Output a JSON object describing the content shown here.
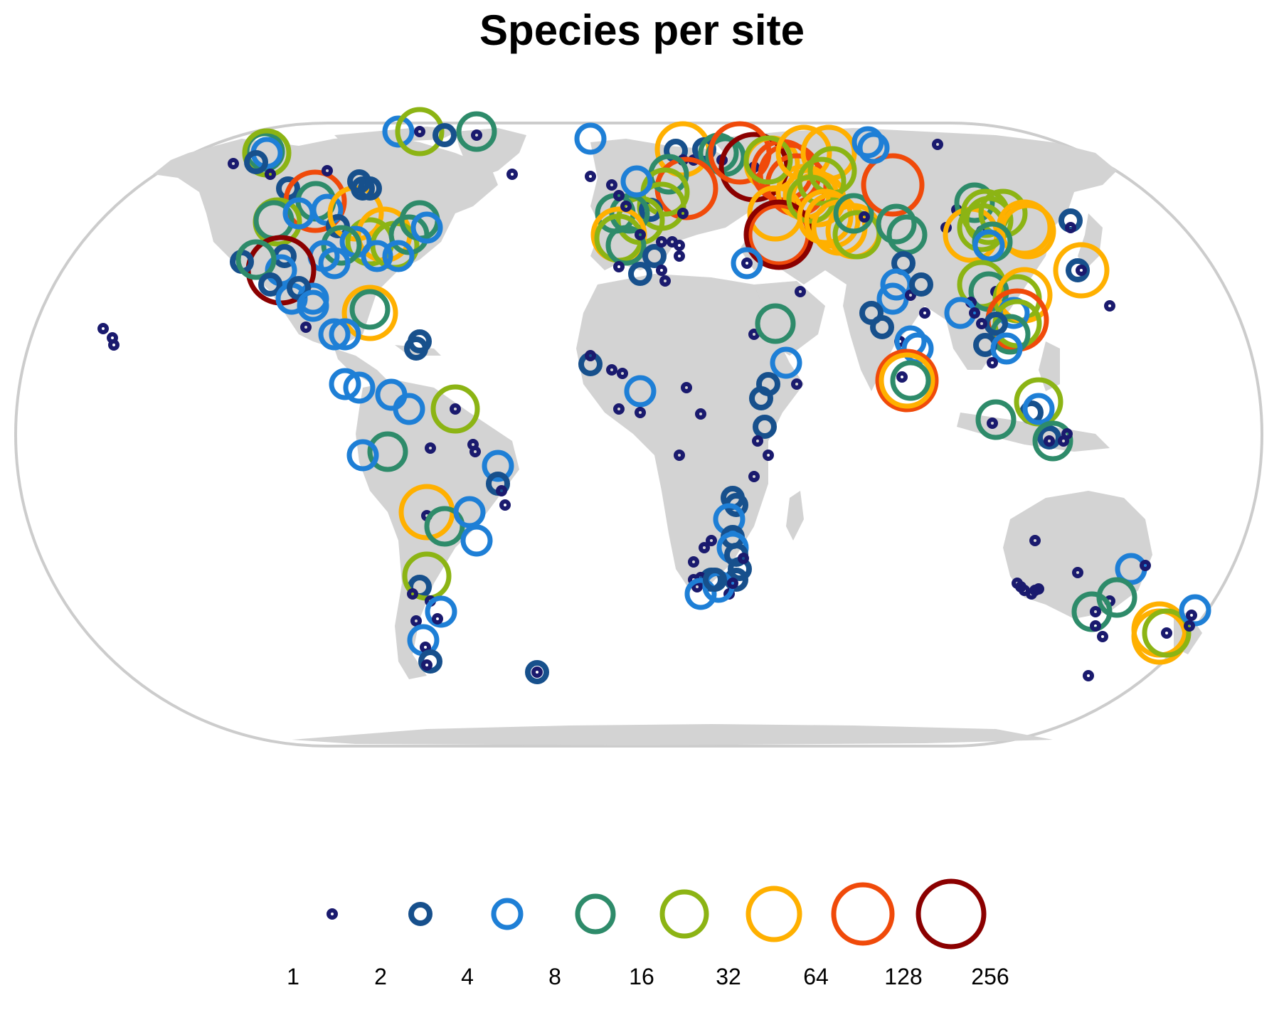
{
  "title": "Species per site",
  "legend": {
    "classes": [
      {
        "label": "1",
        "color": "#1a1a6e"
      },
      {
        "label": "2",
        "color": "#17508c"
      },
      {
        "label": "4",
        "color": "#1e7fd6"
      },
      {
        "label": "8",
        "color": "#2e8b6a"
      },
      {
        "label": "16",
        "color": "#8cb414"
      },
      {
        "label": "32",
        "color": "#ffb000"
      },
      {
        "label": "64",
        "color": "#f04a0a"
      },
      {
        "label": "128",
        "color": "#8b0000"
      }
    ],
    "last_label": "256"
  },
  "map": {
    "projection": "Eckert IV (world)",
    "land_color": "#d3d3d3",
    "outline_color": "#cccccc",
    "ocean_color": "#ffffff"
  }
}
